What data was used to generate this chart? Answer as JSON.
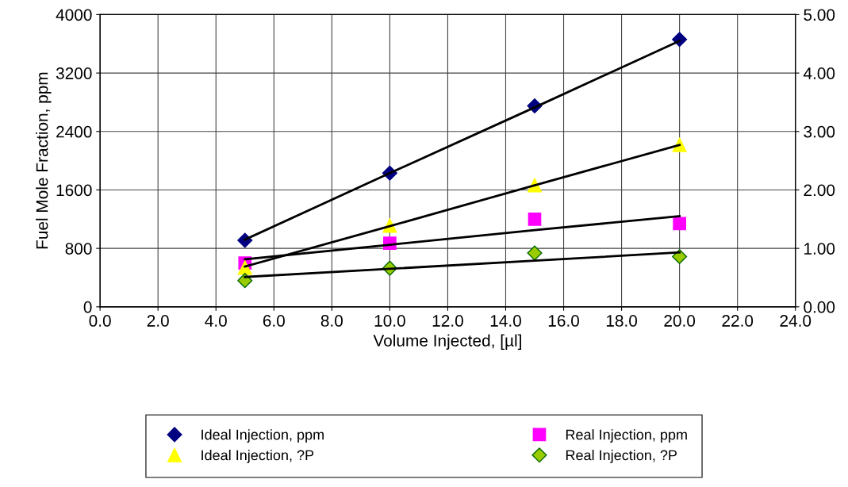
{
  "chart_data": {
    "type": "scatter",
    "xlabel": "Volume Injected, [µl]",
    "ylabel": "Fuel Mole Fraction, ppm",
    "x": [
      5,
      10,
      15,
      20
    ],
    "xlim": [
      0,
      24
    ],
    "xticks": [
      {
        "value": 0,
        "label": "0.0"
      },
      {
        "value": 2,
        "label": "2.0"
      },
      {
        "value": 4,
        "label": "4.0"
      },
      {
        "value": 6,
        "label": "6.0"
      },
      {
        "value": 8,
        "label": "8.0"
      },
      {
        "value": 10,
        "label": "10.0"
      },
      {
        "value": 12,
        "label": "12.0"
      },
      {
        "value": 14,
        "label": "14.0"
      },
      {
        "value": 16,
        "label": "16.0"
      },
      {
        "value": 18,
        "label": "18.0"
      },
      {
        "value": 20,
        "label": "20.0"
      },
      {
        "value": 22,
        "label": "22.0"
      },
      {
        "value": 24,
        "label": "24.0"
      }
    ],
    "ylim": [
      0,
      4000
    ],
    "yticks": [
      0,
      800,
      1600,
      2400,
      3200,
      4000
    ],
    "y2lim": [
      0,
      5
    ],
    "y2ticks": [
      {
        "value": 0,
        "label": "0.00"
      },
      {
        "value": 1,
        "label": "1.00"
      },
      {
        "value": 2,
        "label": "2.00"
      },
      {
        "value": 3,
        "label": "3.00"
      },
      {
        "value": 4,
        "label": "4.00"
      },
      {
        "value": 5,
        "label": "5.00"
      }
    ],
    "grid": true,
    "legend": "bottom",
    "series": [
      {
        "name": "Ideal Injection, ppm",
        "color": "#000080",
        "marker": "diamond",
        "values": [
          910,
          1830,
          2750,
          3660
        ]
      },
      {
        "name": "Real Injection, ppm",
        "color": "#ff00ff",
        "marker": "square",
        "values": [
          600,
          870,
          1200,
          1140
        ]
      },
      {
        "name": "Ideal Injection, ?P",
        "color": "#ffff00",
        "marker": "triangle",
        "axis": "y2",
        "values": [
          0.67,
          1.39,
          2.08,
          2.77
        ]
      },
      {
        "name": "Real Injection, ?P",
        "color": "#99cc00",
        "marker": "diamond",
        "axis": "y2",
        "values": [
          0.45,
          0.66,
          0.92,
          0.86
        ]
      },
      {
        "type": "line",
        "color": "#000000",
        "marker": "none",
        "values": [
          920,
          1830,
          2730,
          3640
        ]
      },
      {
        "type": "line",
        "color": "#000000",
        "marker": "none",
        "values": [
          650,
          850,
          1050,
          1240
        ]
      },
      {
        "type": "line",
        "color": "#000000",
        "marker": "none",
        "axis": "y2",
        "values": [
          0.69,
          1.38,
          2.08,
          2.77
        ]
      },
      {
        "type": "line",
        "color": "#000000",
        "marker": "none",
        "axis": "y2",
        "values": [
          0.51,
          0.65,
          0.79,
          0.93
        ]
      }
    ]
  }
}
